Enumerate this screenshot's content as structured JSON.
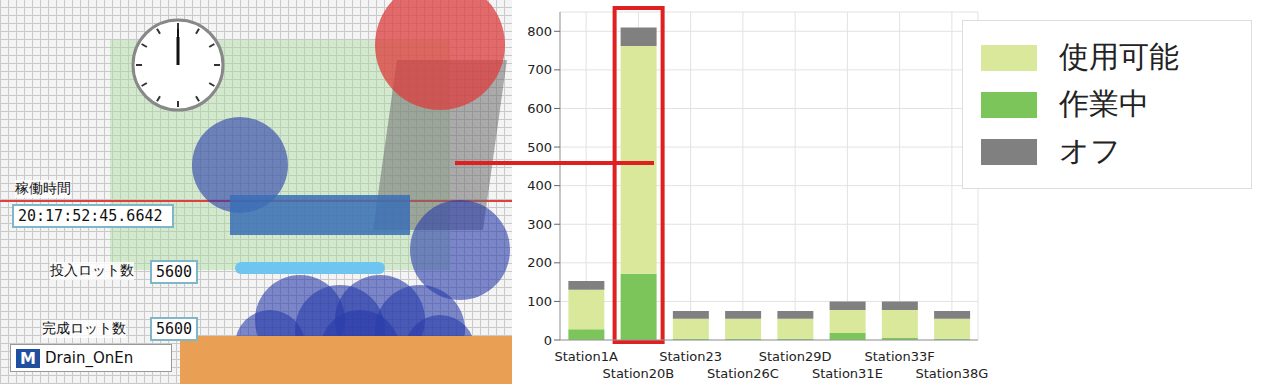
{
  "chart_data": {
    "type": "bar",
    "stacked": true,
    "categories": [
      "Station1A",
      "Station20B",
      "Station23",
      "Station26C",
      "Station29D",
      "Station31E",
      "Station33F",
      "Station38G"
    ],
    "series": [
      {
        "name": "作業中",
        "color": "#7cc55b",
        "values": [
          28,
          172,
          3,
          3,
          3,
          18,
          5,
          3
        ]
      },
      {
        "name": "使用可能",
        "color": "#d9e89b",
        "values": [
          102,
          590,
          52,
          52,
          52,
          60,
          73,
          52
        ]
      },
      {
        "name": "オフ",
        "color": "#808080",
        "values": [
          23,
          48,
          20,
          20,
          20,
          22,
          22,
          20
        ]
      }
    ],
    "ylim": [
      0,
      850
    ],
    "yticks": [
      0,
      100,
      200,
      300,
      400,
      500,
      600,
      700,
      800
    ],
    "grid": true,
    "legend": "upper right"
  },
  "highlight": {
    "category": "Station20B"
  },
  "screenshot": {
    "counters": [
      {
        "label": "稼働時間",
        "value": "20:17:52:45.6642"
      },
      {
        "label": "投入ロット数",
        "value": "5600"
      },
      {
        "label": "完成ロット数",
        "value": "5600"
      }
    ],
    "logo": "M",
    "model_name": "Drain_OnEn"
  }
}
